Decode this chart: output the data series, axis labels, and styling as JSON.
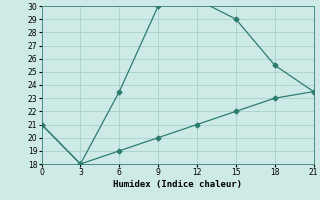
{
  "xlabel": "Humidex (Indice chaleur)",
  "x": [
    0,
    3,
    6,
    9,
    12,
    15,
    18,
    21
  ],
  "line1_y": [
    21,
    18,
    23.5,
    30,
    30.5,
    29,
    25.5,
    23.5
  ],
  "line2_y": [
    21,
    18,
    19,
    20,
    21,
    22,
    23,
    23.5
  ],
  "line_color": "#2d7d6f",
  "bg_color": "#ceeae6",
  "grid_color": "#aed4cf",
  "marker": "D",
  "marker_size": 2.5,
  "xlim": [
    0,
    21
  ],
  "ylim": [
    18,
    30
  ],
  "xticks": [
    0,
    3,
    6,
    9,
    12,
    15,
    18,
    21
  ],
  "yticks": [
    18,
    19,
    20,
    21,
    22,
    23,
    24,
    25,
    26,
    27,
    28,
    29,
    30
  ],
  "tick_fontsize": 5.5,
  "xlabel_fontsize": 6.5,
  "line_width": 0.9
}
